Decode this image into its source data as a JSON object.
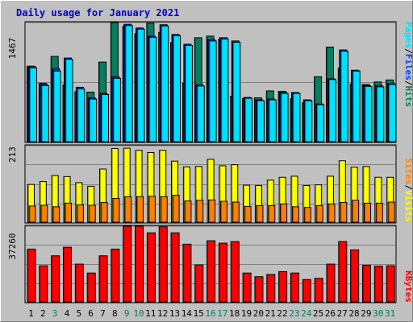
{
  "title": "Daily usage for January 2021",
  "colors": {
    "background": "#c0c0c0",
    "title": "#0000cc",
    "hits": "#00805c",
    "files": "#0040ff",
    "pages": "#00e0ff",
    "visits": "#ffff00",
    "sites": "#ff8000",
    "kbytes": "#ff0000",
    "weekend_label": "#00805c",
    "weekday_label": "#000000"
  },
  "legend": {
    "top": {
      "pages": "Pages",
      "files": "Files",
      "hits": "Hits",
      "sep": "/"
    },
    "middle": {
      "sites": "Sites",
      "visits": "Visits",
      "sep": "/"
    },
    "bottom": {
      "kbytes": "KBytes"
    }
  },
  "chart_data": [
    {
      "type": "bar",
      "panel": "hits-files-pages",
      "y_max_label": "1467",
      "ylim": [
        0,
        1467
      ],
      "grid": true,
      "categories": [
        "1",
        "2",
        "3",
        "4",
        "5",
        "6",
        "7",
        "8",
        "9",
        "10",
        "11",
        "12",
        "13",
        "14",
        "15",
        "16",
        "17",
        "18",
        "19",
        "20",
        "21",
        "22",
        "23",
        "24",
        "25",
        "26",
        "27",
        "28",
        "29",
        "30",
        "31"
      ],
      "series": [
        {
          "name": "Hits",
          "values": [
            930,
            720,
            1050,
            700,
            615,
            610,
            980,
            1467,
            1420,
            1330,
            1460,
            1345,
            1220,
            720,
            1280,
            1300,
            1260,
            560,
            530,
            540,
            625,
            620,
            530,
            480,
            800,
            1165,
            905,
            710,
            705,
            735,
            760
          ]
        },
        {
          "name": "Files",
          "values": [
            925,
            705,
            900,
            1030,
            670,
            540,
            595,
            800,
            1445,
            1400,
            1300,
            1440,
            1320,
            1200,
            700,
            1255,
            1280,
            1240,
            545,
            515,
            525,
            605,
            605,
            515,
            465,
            775,
            1130,
            880,
            690,
            690,
            715
          ]
        },
        {
          "name": "Pages",
          "values": [
            910,
            690,
            870,
            1015,
            650,
            525,
            580,
            780,
            1430,
            1385,
            1285,
            1425,
            1305,
            1185,
            685,
            1240,
            1265,
            1225,
            535,
            505,
            515,
            595,
            595,
            505,
            455,
            765,
            1115,
            870,
            680,
            675,
            705
          ]
        }
      ],
      "weekend_days": [
        "3",
        "9",
        "10",
        "16",
        "17",
        "23",
        "24",
        "30",
        "31"
      ]
    },
    {
      "type": "bar",
      "panel": "visits-sites",
      "y_max_label": "213",
      "ylim": [
        0,
        213
      ],
      "grid": true,
      "categories": [
        "1",
        "2",
        "3",
        "4",
        "5",
        "6",
        "7",
        "8",
        "9",
        "10",
        "11",
        "12",
        "13",
        "14",
        "15",
        "16",
        "17",
        "18",
        "19",
        "20",
        "21",
        "22",
        "23",
        "24",
        "25",
        "26",
        "27",
        "28",
        "29",
        "30",
        "31"
      ],
      "series": [
        {
          "name": "Visits",
          "values": [
            105,
            113,
            130,
            127,
            110,
            100,
            148,
            205,
            206,
            200,
            194,
            200,
            170,
            154,
            155,
            175,
            157,
            160,
            103,
            102,
            117,
            125,
            128,
            102,
            104,
            128,
            171,
            153,
            155,
            125,
            125
          ]
        },
        {
          "name": "Sites",
          "values": [
            45,
            47,
            43,
            53,
            48,
            47,
            55,
            66,
            71,
            71,
            72,
            71,
            75,
            59,
            61,
            62,
            58,
            56,
            44,
            46,
            46,
            51,
            43,
            41,
            46,
            51,
            55,
            61,
            53,
            53,
            56
          ]
        }
      ]
    },
    {
      "type": "bar",
      "panel": "kbytes",
      "y_max_label": "37260",
      "ylim": [
        0,
        37260
      ],
      "grid": true,
      "categories": [
        "1",
        "2",
        "3",
        "4",
        "5",
        "6",
        "7",
        "8",
        "9",
        "10",
        "11",
        "12",
        "13",
        "14",
        "15",
        "16",
        "17",
        "18",
        "19",
        "20",
        "21",
        "22",
        "23",
        "24",
        "25",
        "26",
        "27",
        "28",
        "29",
        "30",
        "31"
      ],
      "series": [
        {
          "name": "KBytes",
          "values": [
            26000,
            17800,
            22700,
            26900,
            18600,
            14200,
            22700,
            26000,
            37260,
            37260,
            34000,
            37000,
            34000,
            28400,
            18200,
            30100,
            28900,
            29700,
            14200,
            12400,
            13500,
            14900,
            14200,
            11000,
            11600,
            18600,
            29700,
            25600,
            18000,
            17600,
            17800
          ]
        }
      ]
    }
  ]
}
